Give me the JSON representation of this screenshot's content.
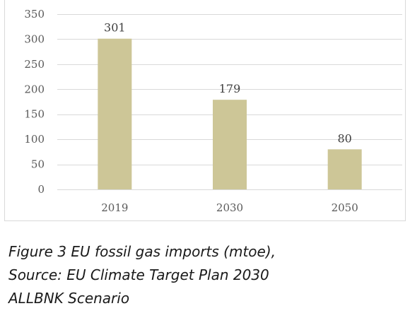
{
  "chart_data": {
    "type": "bar",
    "categories": [
      "2019",
      "2030",
      "2050"
    ],
    "values": [
      301,
      179,
      80
    ],
    "data_labels": [
      "301",
      "179",
      "80"
    ],
    "ylim": [
      0,
      350
    ],
    "yticks": [
      0,
      50,
      100,
      150,
      200,
      250,
      300,
      350
    ],
    "grid": true,
    "legend": "none",
    "bar_color": "#cdc697",
    "grid_color": "#d9d9d9"
  },
  "caption": {
    "line1": "Figure 3 EU fossil gas imports (mtoe),",
    "line2": "Source: EU Climate Target Plan 2030",
    "line3": "ALLBNK Scenario"
  }
}
